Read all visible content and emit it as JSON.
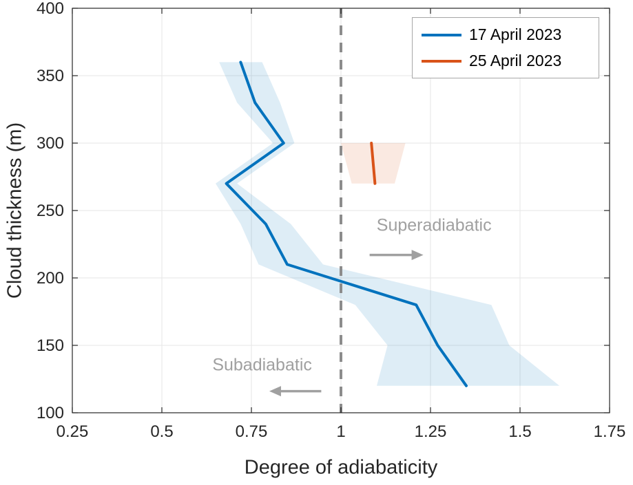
{
  "figure": {
    "background": "#ffffff"
  },
  "chart_data": {
    "type": "line",
    "title": "",
    "xlabel": "Degree of adiabaticity",
    "ylabel": "Cloud thickness (m)",
    "xlim": [
      0.25,
      1.75
    ],
    "ylim": [
      100,
      400
    ],
    "xticks": [
      0.25,
      0.5,
      0.75,
      1,
      1.25,
      1.5,
      1.75
    ],
    "xtick_labels": [
      "0.25",
      "0.5",
      "0.75",
      "1",
      "1.25",
      "1.5",
      "1.75"
    ],
    "yticks": [
      100,
      150,
      200,
      250,
      300,
      350,
      400
    ],
    "ytick_labels": [
      "100",
      "150",
      "200",
      "250",
      "300",
      "350",
      "400"
    ],
    "grid": true,
    "colors": {
      "grid": "#e6e6e6",
      "axis": "#262626",
      "annotation": "#a0a0a0"
    },
    "reference_line": {
      "x": 1,
      "style": "dashed",
      "color": "#8c8c8c"
    },
    "series": [
      {
        "name": "17 April 2023",
        "color": "#0072BD",
        "band_color": "rgba(0,114,189,0.13)",
        "cloud_thickness_m": [
          360,
          330,
          300,
          270,
          240,
          210,
          180,
          150,
          120
        ],
        "adiabaticity": [
          0.72,
          0.76,
          0.84,
          0.68,
          0.79,
          0.85,
          1.21,
          1.27,
          1.35
        ],
        "band_low": [
          0.66,
          0.71,
          0.81,
          0.65,
          0.72,
          0.77,
          1.04,
          1.13,
          1.1
        ],
        "band_high": [
          0.78,
          0.83,
          0.87,
          0.71,
          0.86,
          0.95,
          1.42,
          1.47,
          1.61
        ]
      },
      {
        "name": "25 April 2023",
        "color": "#D95319",
        "band_color": "rgba(217,83,25,0.13)",
        "cloud_thickness_m": [
          300,
          270
        ],
        "adiabaticity": [
          1.085,
          1.095
        ],
        "band_low": [
          1.0,
          1.03
        ],
        "band_high": [
          1.18,
          1.15
        ]
      }
    ],
    "annotations": [
      {
        "text": "Superadiabatic",
        "x": 1.26,
        "y": 239,
        "arrow": {
          "x1": 1.08,
          "x2": 1.23,
          "y": 217
        }
      },
      {
        "text": "Subadiabatic",
        "x": 0.78,
        "y": 135,
        "arrow": {
          "x1": 0.945,
          "x2": 0.8,
          "y": 116
        }
      }
    ],
    "legend": {
      "position": "top-right",
      "entries": [
        "17 April 2023",
        "25 April 2023"
      ]
    }
  }
}
